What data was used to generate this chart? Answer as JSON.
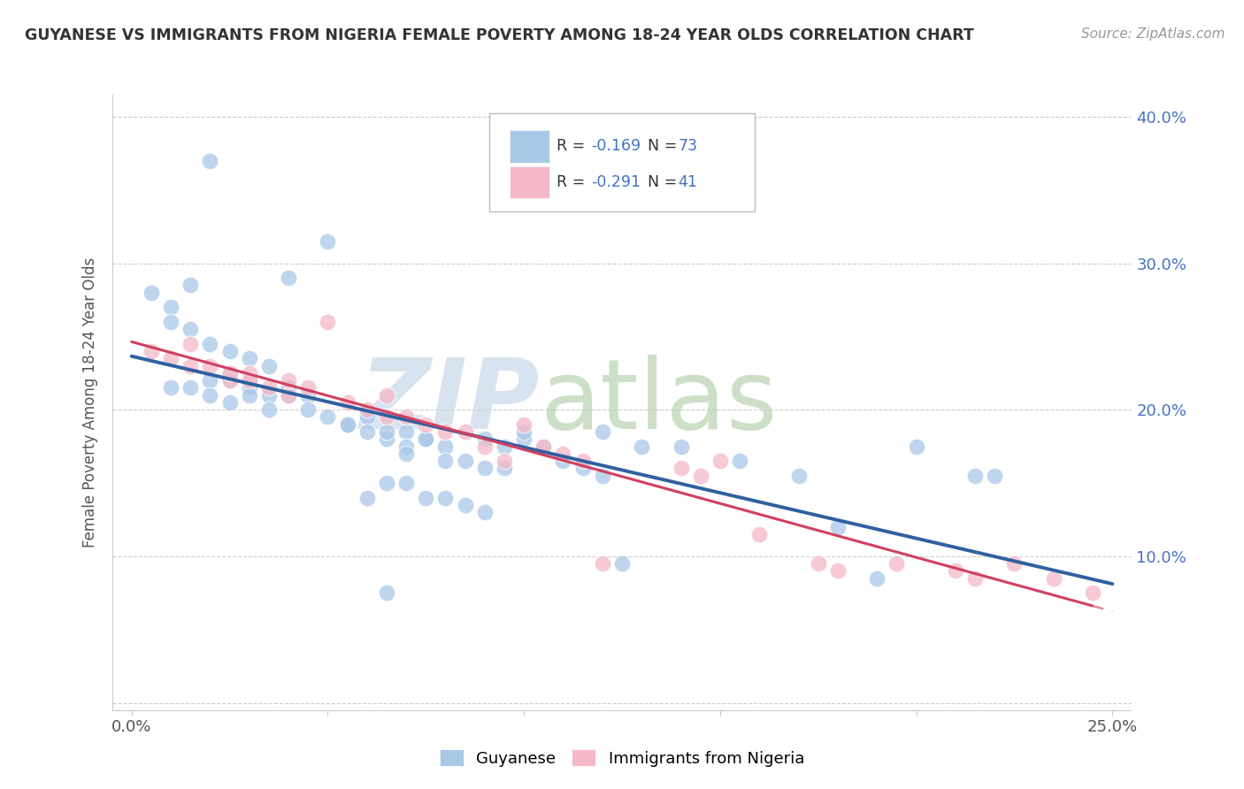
{
  "title": "GUYANESE VS IMMIGRANTS FROM NIGERIA FEMALE POVERTY AMONG 18-24 YEAR OLDS CORRELATION CHART",
  "source": "Source: ZipAtlas.com",
  "ylabel": "Female Poverty Among 18-24 Year Olds",
  "R_blue": -0.169,
  "N_blue": 73,
  "R_pink": -0.291,
  "N_pink": 41,
  "blue_color": "#a8c8e8",
  "pink_color": "#f4b8c8",
  "blue_line_color": "#3060a0",
  "pink_line_color": "#d04060",
  "pink_dash_color": "#e08898",
  "legend_labels": [
    "Guyanese",
    "Immigrants from Nigeria"
  ],
  "blue_x": [
    0.02,
    0.05,
    0.04,
    0.015,
    0.005,
    0.01,
    0.01,
    0.015,
    0.02,
    0.025,
    0.03,
    0.035,
    0.025,
    0.03,
    0.04,
    0.01,
    0.02,
    0.015,
    0.025,
    0.03,
    0.035,
    0.04,
    0.045,
    0.02,
    0.025,
    0.03,
    0.035,
    0.04,
    0.045,
    0.05,
    0.055,
    0.06,
    0.055,
    0.06,
    0.065,
    0.07,
    0.075,
    0.065,
    0.07,
    0.075,
    0.08,
    0.09,
    0.095,
    0.1,
    0.12,
    0.13,
    0.14,
    0.155,
    0.17,
    0.18,
    0.19,
    0.2,
    0.215,
    0.22,
    0.07,
    0.08,
    0.085,
    0.09,
    0.095,
    0.1,
    0.105,
    0.11,
    0.115,
    0.12,
    0.125,
    0.065,
    0.07,
    0.075,
    0.08,
    0.085,
    0.09,
    0.06,
    0.065
  ],
  "blue_y": [
    0.37,
    0.315,
    0.29,
    0.285,
    0.28,
    0.27,
    0.26,
    0.255,
    0.245,
    0.24,
    0.235,
    0.23,
    0.225,
    0.22,
    0.215,
    0.215,
    0.22,
    0.215,
    0.22,
    0.215,
    0.21,
    0.215,
    0.21,
    0.21,
    0.205,
    0.21,
    0.2,
    0.21,
    0.2,
    0.195,
    0.19,
    0.195,
    0.19,
    0.185,
    0.18,
    0.185,
    0.18,
    0.185,
    0.175,
    0.18,
    0.175,
    0.18,
    0.175,
    0.18,
    0.185,
    0.175,
    0.175,
    0.165,
    0.155,
    0.12,
    0.085,
    0.175,
    0.155,
    0.155,
    0.17,
    0.165,
    0.165,
    0.16,
    0.16,
    0.185,
    0.175,
    0.165,
    0.16,
    0.155,
    0.095,
    0.15,
    0.15,
    0.14,
    0.14,
    0.135,
    0.13,
    0.14,
    0.075
  ],
  "pink_x": [
    0.005,
    0.01,
    0.015,
    0.015,
    0.02,
    0.025,
    0.025,
    0.03,
    0.03,
    0.035,
    0.04,
    0.04,
    0.045,
    0.05,
    0.055,
    0.06,
    0.065,
    0.065,
    0.07,
    0.075,
    0.08,
    0.085,
    0.09,
    0.095,
    0.1,
    0.105,
    0.11,
    0.115,
    0.12,
    0.14,
    0.145,
    0.15,
    0.16,
    0.175,
    0.18,
    0.195,
    0.21,
    0.215,
    0.225,
    0.235,
    0.245
  ],
  "pink_y": [
    0.24,
    0.235,
    0.23,
    0.245,
    0.23,
    0.22,
    0.225,
    0.225,
    0.22,
    0.215,
    0.21,
    0.22,
    0.215,
    0.26,
    0.205,
    0.2,
    0.195,
    0.21,
    0.195,
    0.19,
    0.185,
    0.185,
    0.175,
    0.165,
    0.19,
    0.175,
    0.17,
    0.165,
    0.095,
    0.16,
    0.155,
    0.165,
    0.115,
    0.095,
    0.09,
    0.095,
    0.09,
    0.085,
    0.095,
    0.085,
    0.075
  ]
}
